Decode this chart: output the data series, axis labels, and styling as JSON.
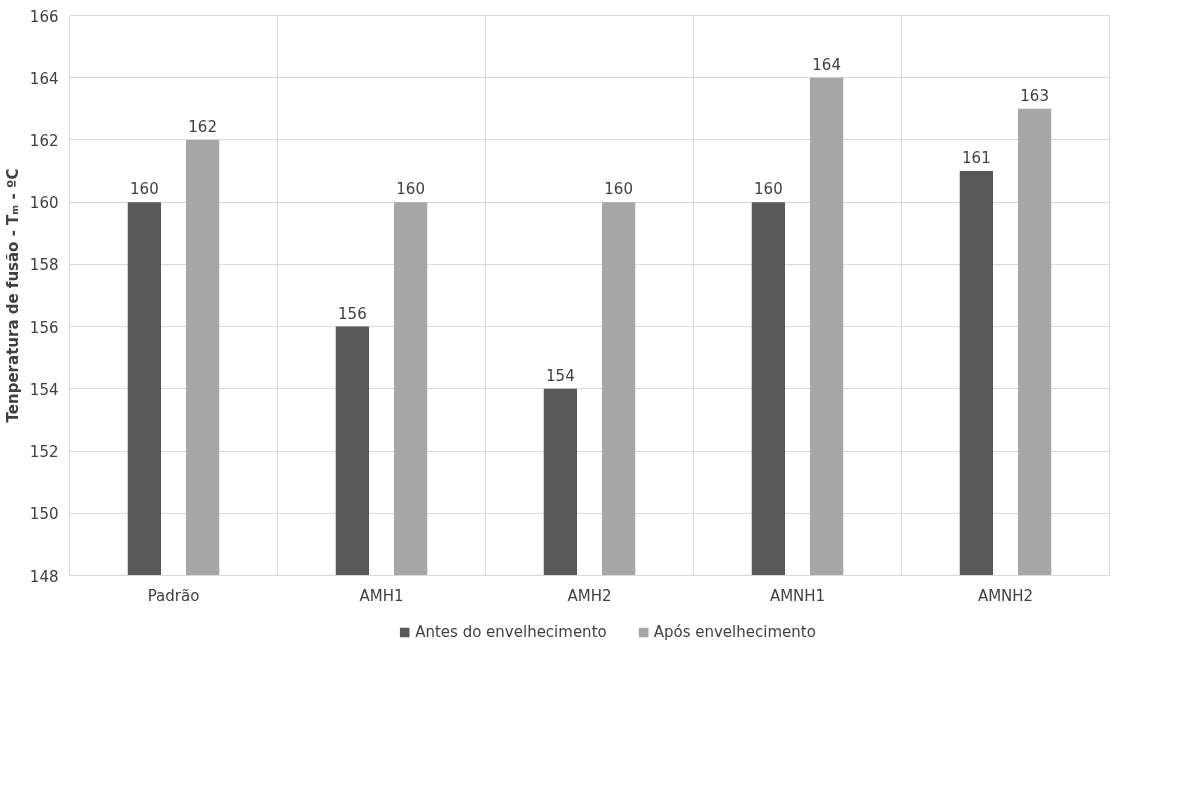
{
  "chart_data": {
    "type": "bar",
    "ylabel": "Tenperatura de fusão - Tₘ - ºC",
    "categories": [
      "Padrão",
      "AMH1",
      "AMH2",
      "AMNH1",
      "AMNH2"
    ],
    "series": [
      {
        "name": "Antes do envelhecimento",
        "color": "#595959",
        "values": [
          160,
          156,
          154,
          160,
          161
        ]
      },
      {
        "name": "Após envelhecimento",
        "color": "#a6a6a6",
        "values": [
          162,
          160,
          160,
          164,
          163
        ]
      }
    ],
    "ylim": [
      148,
      166
    ],
    "yticks": [
      148,
      150,
      152,
      154,
      156,
      158,
      160,
      162,
      164,
      166
    ],
    "grid": true,
    "legend": "bottom",
    "data_labels": true
  }
}
